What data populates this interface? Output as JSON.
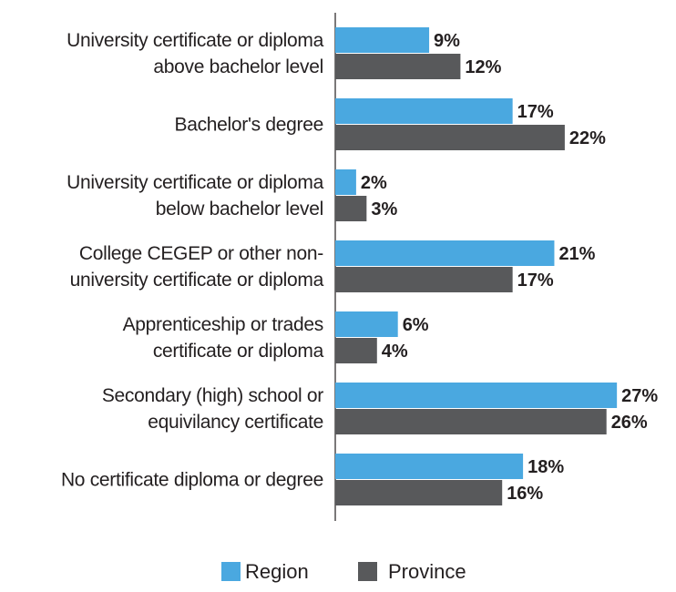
{
  "chart_data": {
    "type": "bar",
    "orientation": "horizontal",
    "categories": [
      "University certificate or diploma\nabove bachelor level",
      "Bachelor's degree",
      "University certificate or diploma\nbelow bachelor level",
      "College CEGEP or other non-\nuniversity certificate or diploma",
      "Apprenticeship or trades\ncertificate or diploma",
      "Secondary (high) school or\nequivilancy certificate",
      "No certificate diploma or degree"
    ],
    "series": [
      {
        "name": "Region",
        "color": "#4aa8e0",
        "values": [
          9,
          17,
          2,
          21,
          6,
          27,
          18
        ],
        "value_labels": [
          "9%",
          "17%",
          "2%",
          "21%",
          "6%",
          "27%",
          "18%"
        ]
      },
      {
        "name": "Province",
        "color": "#58595b",
        "values": [
          12,
          22,
          3,
          17,
          4,
          26,
          16
        ],
        "value_labels": [
          "12%",
          "22%",
          "3%",
          "17%",
          "4%",
          "26%",
          "16%"
        ]
      }
    ],
    "legend": "bottom"
  }
}
